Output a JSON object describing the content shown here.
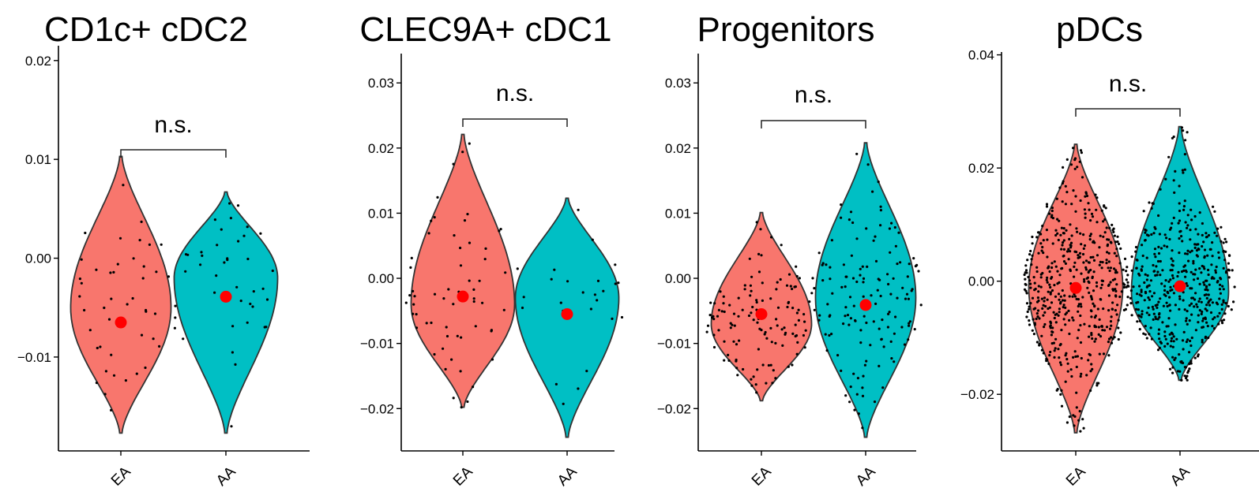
{
  "colors": {
    "EA": "#F8766D",
    "AA": "#00BFC4",
    "mean": "#FF0000"
  },
  "chart_data": [
    {
      "type": "violin",
      "title": "CD1c+ cDC2",
      "categories": [
        "EA",
        "AA"
      ],
      "ylim": [
        -0.0195,
        0.0215
      ],
      "yticks": [
        0.02,
        0.01,
        0.0,
        -0.01
      ],
      "yticklabels": [
        "0.02",
        "0.01",
        "0.00",
        "−0.01"
      ],
      "significance": "n.s.",
      "series": [
        {
          "name": "EA",
          "min": -0.0177,
          "max": 0.0103,
          "mode": -0.005,
          "mean": -0.0065,
          "n_points": 45
        },
        {
          "name": "AA",
          "min": -0.0177,
          "max": 0.0067,
          "mode": -0.002,
          "mean": -0.0039,
          "n_points": 40
        }
      ]
    },
    {
      "type": "violin",
      "title": "CLEC9A+ cDC1",
      "categories": [
        "EA",
        "AA"
      ],
      "ylim": [
        -0.0265,
        0.0345
      ],
      "yticks": [
        0.03,
        0.02,
        0.01,
        0.0,
        -0.01,
        -0.02
      ],
      "yticklabels": [
        "0.03",
        "0.02",
        "0.01",
        "0.00",
        "−0.01",
        "−0.02"
      ],
      "significance": "n.s.",
      "series": [
        {
          "name": "EA",
          "min": -0.0198,
          "max": 0.0221,
          "mode": -0.004,
          "mean": -0.0028,
          "n_points": 60
        },
        {
          "name": "AA",
          "min": -0.0244,
          "max": 0.0123,
          "mode": -0.003,
          "mean": -0.0055,
          "n_points": 25
        }
      ]
    },
    {
      "type": "violin",
      "title": "Progenitors",
      "categories": [
        "EA",
        "AA"
      ],
      "ylim": [
        -0.0265,
        0.0345
      ],
      "yticks": [
        0.03,
        0.02,
        0.01,
        0.0,
        -0.01,
        -0.02
      ],
      "yticklabels": [
        "0.03",
        "0.02",
        "0.01",
        "0.00",
        "−0.01",
        "−0.02"
      ],
      "significance": "n.s.",
      "series": [
        {
          "name": "EA",
          "min": -0.0188,
          "max": 0.0101,
          "mode": -0.007,
          "mean": -0.0055,
          "n_points": 130
        },
        {
          "name": "AA",
          "min": -0.0244,
          "max": 0.0208,
          "mode": -0.003,
          "mean": -0.0041,
          "n_points": 140
        }
      ]
    },
    {
      "type": "violin",
      "title": "pDCs",
      "categories": [
        "EA",
        "AA"
      ],
      "ylim": [
        -0.03,
        0.0405
      ],
      "yticks": [
        0.04,
        0.02,
        0.0,
        -0.02
      ],
      "yticklabels": [
        "0.04",
        "0.02",
        "0.00",
        "−0.02"
      ],
      "significance": "n.s.",
      "series": [
        {
          "name": "EA",
          "min": -0.0268,
          "max": 0.0242,
          "mode": -0.001,
          "mean": -0.0012,
          "n_points": 520
        },
        {
          "name": "AA",
          "min": -0.0175,
          "max": 0.0273,
          "mode": -0.002,
          "mean": -0.0009,
          "n_points": 460
        }
      ]
    }
  ]
}
